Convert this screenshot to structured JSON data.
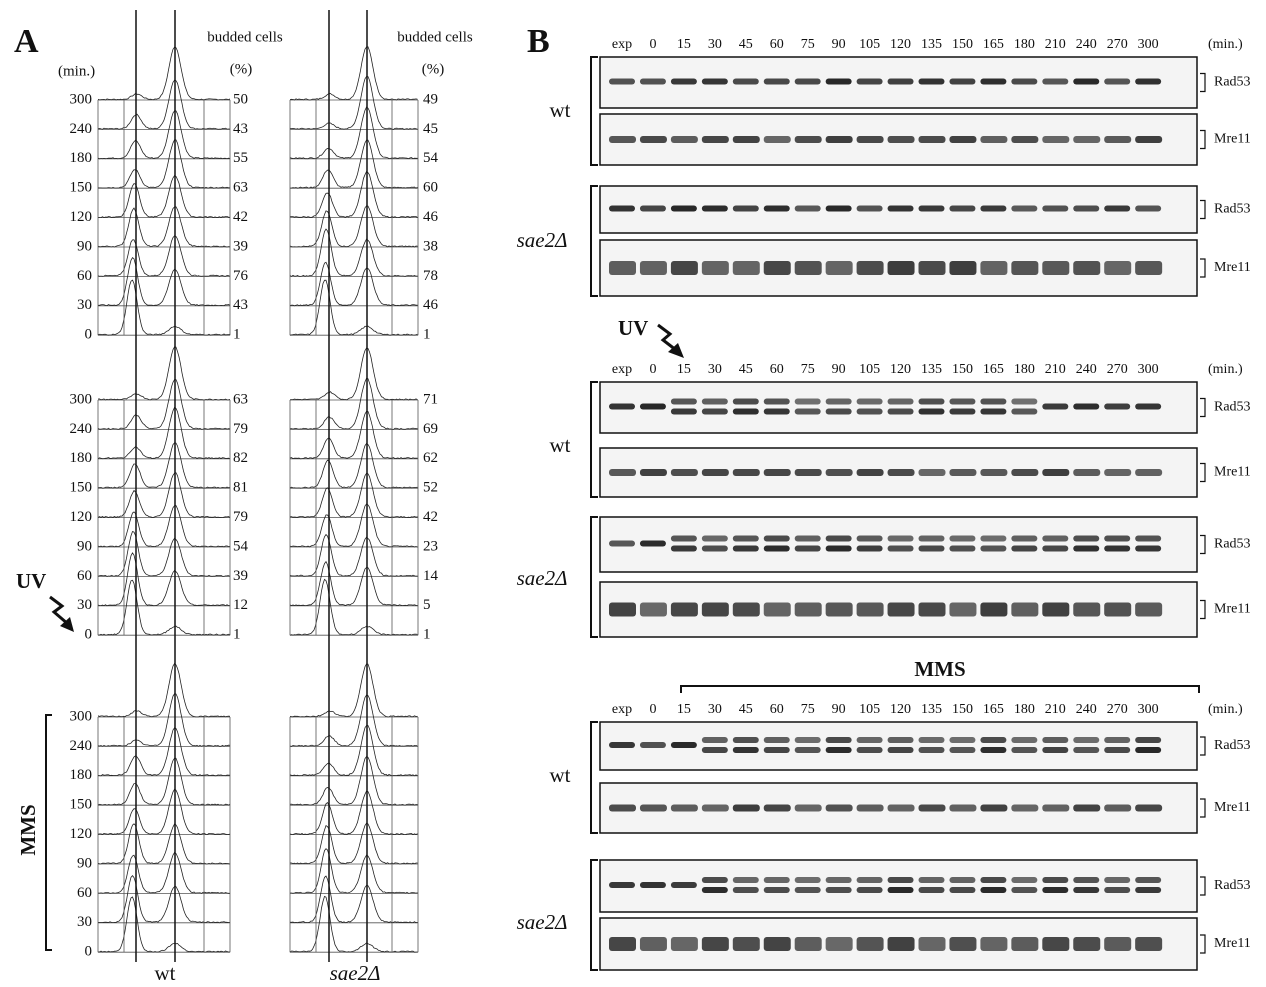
{
  "time_unit": "(min.)",
  "strains": [
    "wt",
    "sae2Δ"
  ],
  "proteins": [
    "Rad53",
    "Mre11"
  ],
  "treatments": {
    "uv": "UV",
    "mms": "MMS"
  },
  "panel_a": {
    "label": "A",
    "budded_header": "budded cells",
    "budded_unit": "(%)",
    "times": [
      300,
      240,
      180,
      150,
      120,
      90,
      60,
      30,
      0
    ],
    "budded": {
      "wt": [
        [
          50,
          43,
          55,
          63,
          42,
          39,
          76,
          43,
          1
        ],
        [
          63,
          79,
          82,
          81,
          79,
          54,
          39,
          12,
          1
        ]
      ],
      "sae2": [
        [
          49,
          45,
          54,
          60,
          46,
          38,
          78,
          46,
          1
        ],
        [
          71,
          69,
          62,
          52,
          42,
          23,
          14,
          5,
          1
        ]
      ]
    }
  },
  "panel_b": {
    "label": "B",
    "lanes": [
      "exp",
      0,
      15,
      30,
      45,
      60,
      75,
      90,
      105,
      120,
      135,
      150,
      165,
      180,
      210,
      240,
      270,
      300
    ]
  }
}
